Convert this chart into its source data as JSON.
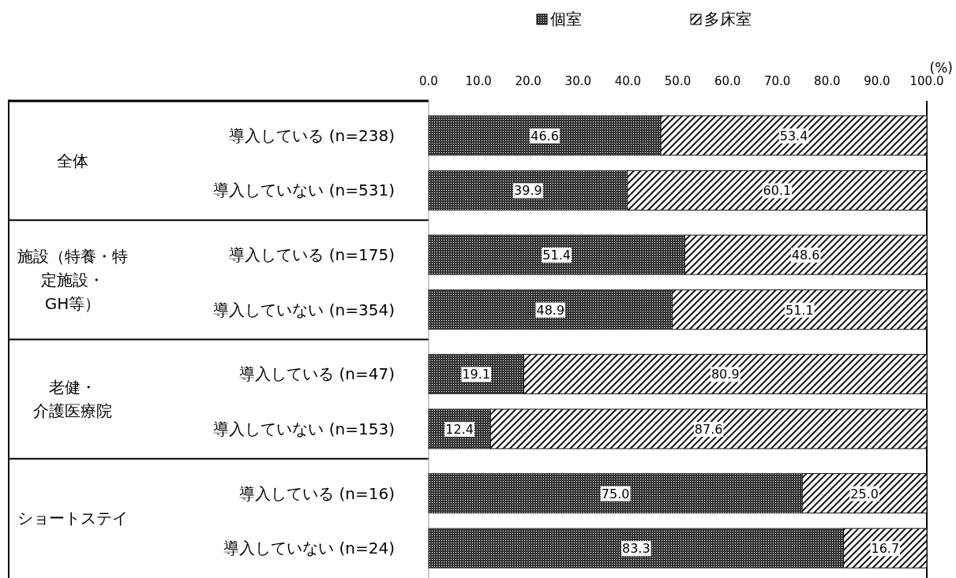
{
  "chart_data": {
    "type": "bar",
    "orientation": "horizontal",
    "stacked": true,
    "xlabel": "(%)",
    "categories": [
      "導入している (n=238)",
      "導入していない (n=531)",
      "導入している (n=175)",
      "導入していない (n=354)",
      "導入している (n=47)",
      "導入していない (n=153)",
      "導入している (n=16)",
      "導入していない (n=24)"
    ],
    "annotations": [
      "全体",
      "施設（特養・特定施設・GH等）",
      "老健・介護医療院",
      "ショートステイ"
    ],
    "series": [
      {
        "name": "個室",
        "color": "#333333",
        "values": [
          46.6,
          39.9,
          51.4,
          48.9,
          19.1,
          12.4,
          75.0,
          83.3
        ],
        "value_labels": [
          "46.6",
          "39.9",
          "51.4",
          "48.9",
          "19.1",
          "12.4",
          "75.0",
          "83.3"
        ]
      },
      {
        "name": "多床室",
        "color": "#111111",
        "values": [
          53.4,
          60.1,
          48.6,
          51.1,
          80.9,
          87.6,
          25.0,
          16.7
        ],
        "value_labels": [
          "53.4",
          "60.1",
          "48.6",
          "51.1",
          "80.9",
          "87.6",
          "25.0",
          "16.7"
        ]
      }
    ],
    "xlim": [
      0,
      100
    ],
    "xticks": [
      {
        "value": 0,
        "label": "0.0"
      },
      {
        "value": 10,
        "label": "10.0"
      },
      {
        "value": 20,
        "label": "20.0"
      },
      {
        "value": 30,
        "label": "30.0"
      },
      {
        "value": 40,
        "label": "40.0"
      },
      {
        "value": 50,
        "label": "50.0"
      },
      {
        "value": 60,
        "label": "60.0"
      },
      {
        "value": 70,
        "label": "70.0"
      },
      {
        "value": 80,
        "label": "80.0"
      },
      {
        "value": 90,
        "label": "90.0"
      },
      {
        "value": 100,
        "label": "100.0"
      }
    ],
    "legend": "top"
  }
}
